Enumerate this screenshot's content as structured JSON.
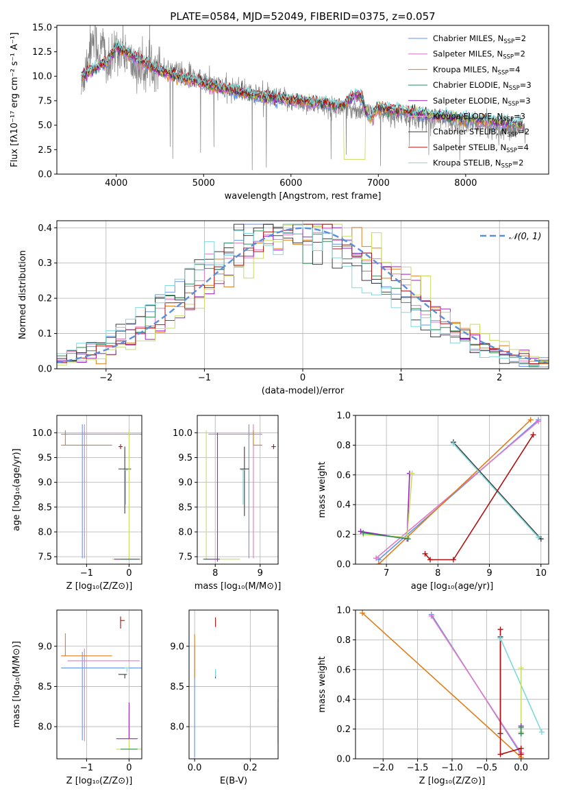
{
  "colors": {
    "chabrier_miles": "#6495ed",
    "salpeter_miles": "#e377c2",
    "kroupa_miles": "#e07b18",
    "chabrier_elodie": "#2e8b57",
    "salpeter_elodie": "#9a1fc4",
    "kroupa_elodie": "#c8dc60",
    "chabrier_stelib": "#3b3b3b",
    "salpeter_stelib": "#b01010",
    "kroupa_stelib": "#7fd8dc",
    "data": "#808080",
    "gaussian": "#5b8fd9",
    "grid": "#b0b0b0"
  },
  "chart_data": [
    {
      "id": "spectrum",
      "type": "line",
      "title": "PLATE=0584, MJD=52049, FIBERID=0375, z=0.057",
      "xlabel": "wavelength [Angstrom, rest frame]",
      "ylabel": "Flux [fλ10⁻¹⁷ erg cm⁻² s⁻¹ A⁻¹]",
      "xlim": [
        3320,
        8950
      ],
      "ylim": [
        0,
        15.2
      ],
      "xticks": [
        4000,
        5000,
        6000,
        7000,
        8000
      ],
      "yticks": [
        0.0,
        2.5,
        5.0,
        7.5,
        10.0,
        12.5,
        15.0
      ],
      "grid": false,
      "legend_position": "top-right",
      "legend": [
        "Chabrier MILES, N_SSP=2",
        "Salpeter MILES, N_SSP=2",
        "Kroupa MILES, N_SSP=4",
        "Chabrier ELODIE, N_SSP=3",
        "Salpeter ELODIE, N_SSP=3",
        "Kroupa ELODIE, N_SSP=3",
        "Chabrier STELIB, N_SSP=2",
        "Salpeter STELIB, N_SSP=4",
        "Kroupa STELIB, N_SSP=2"
      ],
      "data_series": {
        "x": [
          3600,
          3650,
          3700,
          3750,
          3800,
          3850,
          3900,
          3950,
          4000,
          4100,
          4200,
          4300,
          4400,
          4500,
          4600,
          4700,
          4800,
          4900,
          5000,
          5100,
          5200,
          5300,
          5400,
          5500,
          5600,
          5700,
          5800,
          5900,
          6000,
          6100,
          6200,
          6300,
          6400,
          6500,
          6600,
          6700,
          6800,
          6900,
          7000,
          7100,
          7200,
          7300,
          7400,
          7500,
          7600,
          7700,
          7800,
          7900,
          8000,
          8100,
          8200,
          8300,
          8400,
          8500,
          8600,
          8700
        ],
        "y": [
          8.5,
          11,
          13,
          14.5,
          12,
          13.5,
          10.5,
          11.5,
          13,
          12.5,
          11,
          10.5,
          11.5,
          11,
          10.5,
          10.8,
          10,
          10,
          9.5,
          9.2,
          9,
          8.5,
          8.6,
          8.3,
          8.2,
          8,
          7.8,
          7.6,
          7.5,
          7.3,
          7.2,
          7.1,
          7,
          6.8,
          6.8,
          6.7,
          6.5,
          6.3,
          6.2,
          6.1,
          6,
          5.9,
          5.8,
          5.7,
          5.6,
          5.5,
          5.4,
          5.3,
          5.2,
          5.1,
          5,
          4.9,
          4.8,
          4.7,
          4.6,
          4.5
        ]
      },
      "model_series": {
        "x": [
          3600,
          3700,
          3800,
          3900,
          4000,
          4100,
          4200,
          4300,
          4400,
          4500,
          4700,
          4900,
          5100,
          5300,
          5500,
          5700,
          5900,
          6100,
          6300,
          6500,
          6600,
          6700,
          6800,
          6900,
          7000,
          7100,
          7200,
          7400,
          7600,
          7800,
          8000,
          8200,
          8400,
          8600,
          8700
        ],
        "y": [
          10,
          10.5,
          11,
          11.5,
          13,
          12.5,
          12,
          11.5,
          11,
          10.5,
          10,
          9.5,
          9,
          8.6,
          8.2,
          7.9,
          7.7,
          7.5,
          7.3,
          7.1,
          7.0,
          8.0,
          8.0,
          5.5,
          6.8,
          6.7,
          6.5,
          6.3,
          6.1,
          5.9,
          5.7,
          5.5,
          5.3,
          5.1,
          5.0
        ]
      }
    },
    {
      "id": "residuals",
      "type": "line",
      "xlabel": "(data-model)/error",
      "ylabel": "Normed distribution",
      "xlim": [
        -2.5,
        2.5
      ],
      "ylim": [
        0,
        0.42
      ],
      "xticks": [
        -2,
        -1,
        0,
        1,
        2
      ],
      "yticks": [
        0.0,
        0.1,
        0.2,
        0.3,
        0.4
      ],
      "grid": true,
      "legend_position": "top-right",
      "legend": [
        "𝒩(0, 1)"
      ],
      "bin_width": 0.1
    },
    {
      "id": "age_vs_Z",
      "type": "scatter",
      "xlabel": "Z [log₁₀(Z/Z⊙)]",
      "ylabel": "age  [log₁₀(age/yr)]",
      "xlim": [
        -1.7,
        0.3
      ],
      "ylim": [
        7.35,
        10.35
      ],
      "xticks": [
        -1,
        0
      ],
      "yticks": [
        7.5,
        8.0,
        8.5,
        9.0,
        9.5,
        10.0
      ],
      "grid": true
    },
    {
      "id": "age_vs_mass",
      "type": "scatter",
      "xlabel": "mass [log₁₀(M/M⊙)]",
      "xlim": [
        7.6,
        9.4
      ],
      "ylim": [
        7.35,
        10.35
      ],
      "xticks": [
        8,
        9
      ],
      "yticks": [
        7.5,
        8.0,
        8.5,
        9.0,
        9.5,
        10.0
      ],
      "grid": true
    },
    {
      "id": "massweight_vs_age",
      "type": "line",
      "xlabel": "age  [log₁₀(age/yr)]",
      "ylabel": "mass weight",
      "xlim": [
        6.4,
        10.15
      ],
      "ylim": [
        0,
        1.0
      ],
      "xticks": [
        7,
        8,
        9,
        10
      ],
      "yticks": [
        0.0,
        0.2,
        0.4,
        0.6,
        0.8,
        1.0
      ],
      "grid": true
    },
    {
      "id": "mass_vs_Z",
      "type": "scatter",
      "xlabel": "Z [log₁₀(Z/Z⊙)]",
      "ylabel": "mass [log₁₀(M/M⊙)]",
      "xlim": [
        -1.7,
        0.3
      ],
      "ylim": [
        7.6,
        9.45
      ],
      "xticks": [
        -1,
        0
      ],
      "yticks": [
        8.0,
        8.5,
        9.0
      ],
      "grid": true
    },
    {
      "id": "mass_vs_EBV",
      "type": "scatter",
      "xlabel": "E(B-V)",
      "xlim": [
        -0.02,
        0.3
      ],
      "ylim": [
        7.6,
        9.45
      ],
      "xticks": [
        0.0,
        0.2
      ],
      "yticks": [
        8.0,
        8.5,
        9.0
      ],
      "grid": true
    },
    {
      "id": "massweight_vs_Z",
      "type": "line",
      "xlabel": "Z [log₁₀(Z/Z⊙)]",
      "ylabel": "mass weight",
      "xlim": [
        -2.4,
        0.4
      ],
      "ylim": [
        0,
        1.0
      ],
      "xticks": [
        -2.0,
        -1.5,
        -1.0,
        -0.5,
        0.0
      ],
      "yticks": [
        0.0,
        0.2,
        0.4,
        0.6,
        0.8,
        1.0
      ],
      "grid": true
    }
  ]
}
